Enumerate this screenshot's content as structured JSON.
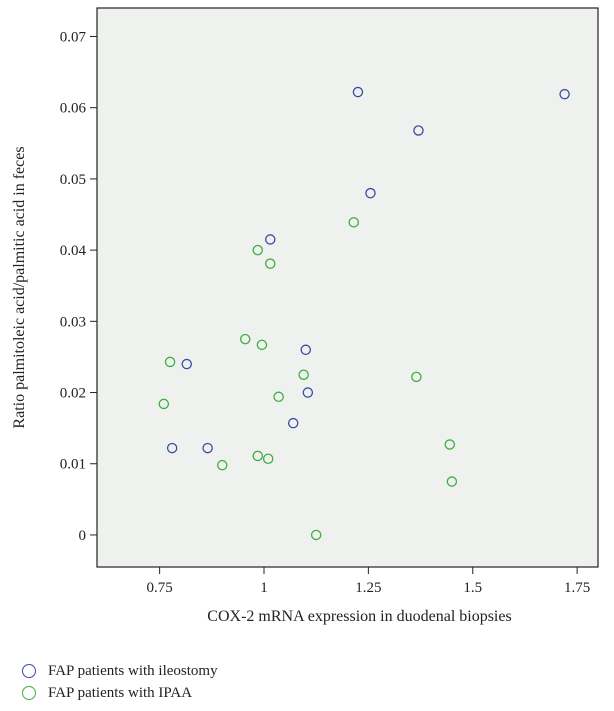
{
  "chart_data": {
    "type": "scatter",
    "xlabel": "COX-2 mRNA expression in duodenal biopsies",
    "ylabel": "Ratio palmitoleic acid/palmitic acid in feces",
    "xlim": [
      0.6,
      1.8
    ],
    "ylim": [
      -0.0045,
      0.074
    ],
    "x_ticks": [
      0.75,
      1,
      1.25,
      1.5,
      1.75
    ],
    "x_tick_labels": [
      "0.75",
      "1",
      "1.25",
      "1.5",
      "1.75"
    ],
    "y_ticks": [
      0,
      0.01,
      0.02,
      0.03,
      0.04,
      0.05,
      0.06,
      0.07
    ],
    "y_tick_labels": [
      "0",
      "0.01",
      "0.02",
      "0.03",
      "0.04",
      "0.05",
      "0.06",
      "0.07"
    ],
    "background": "#eff1ef",
    "series": [
      {
        "name": "FAP patients with ileostomy",
        "color": "#3a4aa6",
        "points": [
          [
            1.225,
            0.0622
          ],
          [
            1.37,
            0.0568
          ],
          [
            1.72,
            0.0619
          ],
          [
            1.255,
            0.048
          ],
          [
            1.015,
            0.0415
          ],
          [
            1.1,
            0.026
          ],
          [
            0.815,
            0.024
          ],
          [
            1.105,
            0.02
          ],
          [
            1.07,
            0.0157
          ],
          [
            0.78,
            0.0122
          ],
          [
            0.865,
            0.0122
          ]
        ]
      },
      {
        "name": "FAP patients with IPAA",
        "color": "#3fae3f",
        "points": [
          [
            1.215,
            0.0439
          ],
          [
            0.985,
            0.04
          ],
          [
            1.015,
            0.0381
          ],
          [
            0.955,
            0.0275
          ],
          [
            0.995,
            0.0267
          ],
          [
            0.775,
            0.0243
          ],
          [
            1.095,
            0.0225
          ],
          [
            1.365,
            0.0222
          ],
          [
            0.76,
            0.0184
          ],
          [
            1.035,
            0.0194
          ],
          [
            1.445,
            0.0127
          ],
          [
            0.985,
            0.0111
          ],
          [
            1.01,
            0.0107
          ],
          [
            0.9,
            0.0098
          ],
          [
            1.45,
            0.0075
          ],
          [
            1.125,
            0.0
          ]
        ]
      }
    ]
  }
}
